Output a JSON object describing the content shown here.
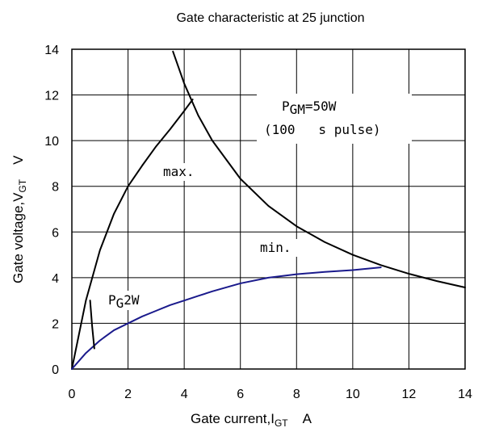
{
  "chart_data": {
    "type": "line",
    "title": "Gate characteristic at 25    junction",
    "xlabel": {
      "main": "Gate current,I",
      "sub": "GT",
      "unit": "A"
    },
    "ylabel": {
      "main": "Gate voltage,V",
      "sub": "GT",
      "unit": "V"
    },
    "xlim": [
      0,
      14
    ],
    "ylim": [
      0,
      14
    ],
    "xticks": [
      0,
      2,
      4,
      6,
      8,
      10,
      12,
      14
    ],
    "yticks": [
      0,
      2,
      4,
      6,
      8,
      10,
      12,
      14
    ],
    "grid": true,
    "annotations": {
      "pgm": {
        "main": "P",
        "sub": "GM",
        "value": "=50W"
      },
      "pulse": "(100   s pulse)",
      "max": "max.",
      "min": "min.",
      "pg": {
        "main": "P",
        "sub": "G",
        "value": "2W"
      }
    },
    "series": [
      {
        "color": "#000000",
        "x": [
          0,
          0.5,
          1.0,
          1.5,
          2.0,
          2.5,
          3.0,
          3.5,
          4.0,
          4.3
        ],
        "y": [
          0,
          3.0,
          5.2,
          6.8,
          8.0,
          8.9,
          9.75,
          10.5,
          11.3,
          11.8
        ]
      },
      {
        "color": "#1a1a8c",
        "x": [
          0,
          0.5,
          1.0,
          1.5,
          2.0,
          2.5,
          3.0,
          3.5,
          4.0,
          4.5,
          5.0,
          6.0,
          7.0,
          8.0,
          9.0,
          10.0,
          11.0
        ],
        "y": [
          0,
          0.7,
          1.25,
          1.7,
          2.0,
          2.3,
          2.55,
          2.8,
          3.0,
          3.2,
          3.4,
          3.75,
          4.0,
          4.15,
          4.25,
          4.33,
          4.45
        ]
      },
      {
        "color": "#000000",
        "x": [
          3.6,
          4.0,
          4.5,
          5.0,
          6.0,
          7.0,
          8.0,
          9.0,
          10.0,
          11.0,
          12.0,
          13.0,
          14.0
        ],
        "y": [
          13.9,
          12.5,
          11.1,
          10.0,
          8.33,
          7.14,
          6.25,
          5.56,
          5.0,
          4.55,
          4.17,
          3.85,
          3.57
        ]
      },
      {
        "color": "#000000",
        "x": [
          0.65,
          0.72,
          0.8
        ],
        "y": [
          3.0,
          1.9,
          0.9
        ]
      }
    ]
  }
}
